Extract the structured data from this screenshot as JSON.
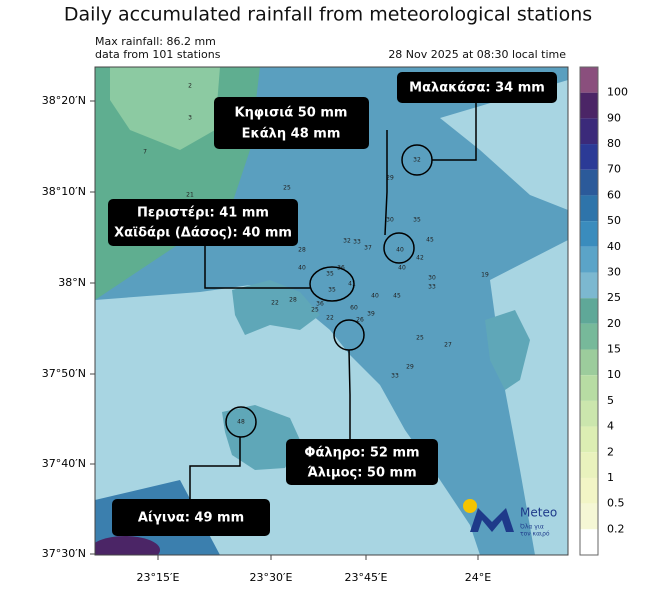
{
  "title": "Daily accumulated rainfall from meteorological stations",
  "info": {
    "max": "Max rainfall: 86.2 mm",
    "count": "data from 101 stations",
    "time": "28 Nov 2025 at 08:30 local time"
  },
  "lat_labels": [
    "38°20′N",
    "38°10′N",
    "38°N",
    "37°50′N",
    "37°40′N",
    "37°30′N"
  ],
  "lon_labels": [
    "23°15′E",
    "23°30′E",
    "23°45′E",
    "24°E"
  ],
  "colorbar": {
    "labels": [
      "100",
      "90",
      "80",
      "70",
      "60",
      "50",
      "40",
      "30",
      "25",
      "20",
      "15",
      "10",
      "5",
      "4",
      "2",
      "1",
      "0.5",
      "0.2"
    ],
    "colors": [
      "#8a4f7d",
      "#4b2566",
      "#3b2a7a",
      "#2b3a96",
      "#2b5a9a",
      "#2e74aa",
      "#3a8cbd",
      "#5ba4c8",
      "#7cb8d0",
      "#5fa898",
      "#77b99a",
      "#9ccc9c",
      "#b7dca3",
      "#cbe6ad",
      "#dceeb3",
      "#e9f2bd",
      "#f2f5c6",
      "#f5f7d5",
      "#ffffff"
    ]
  },
  "callouts": {
    "malakasa": "Μαλακάσα: 34 mm",
    "kifisia": "Κηφισιά 50 mm",
    "ekali": "Εκάλη 48 mm",
    "peristeri": "Περιστέρι: 41 mm",
    "chaidari": "Χαϊδάρι (Δάσος): 40 mm",
    "faliro": "Φάληρο: 52 mm",
    "alimos": "Άλιμος: 50 mm",
    "aigina": "Αίγινα: 49 mm"
  },
  "stations": [
    "2",
    "3",
    "7",
    "21",
    "25",
    "29",
    "32",
    "35",
    "30",
    "40",
    "45",
    "42",
    "40",
    "30",
    "33",
    "32",
    "33",
    "37",
    "28",
    "40",
    "36",
    "35",
    "41",
    "35",
    "28",
    "22",
    "36",
    "60",
    "39",
    "45",
    "40",
    "25",
    "27",
    "29",
    "33",
    "48",
    "19",
    "26",
    "25",
    "22"
  ],
  "logo": {
    "name": "Meteo",
    "tagline1": "Όλα για",
    "tagline2": "τον καιρό"
  }
}
